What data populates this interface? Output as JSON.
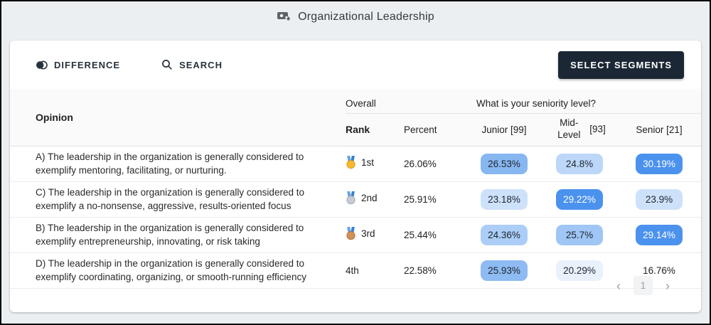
{
  "header": {
    "title": "Organizational Leadership"
  },
  "toolbar": {
    "difference_label": "DIFFERENCE",
    "search_label": "SEARCH",
    "select_segments_label": "SELECT SEGMENTS",
    "button_color": "#1b2734"
  },
  "table": {
    "opinion_header": "Opinion",
    "group_overall": "Overall",
    "group_segments": "What is your seniority level?",
    "col_rank": "Rank",
    "col_percent": "Percent",
    "col_junior": "Junior [99]",
    "col_mid_word": "Mid-Level",
    "col_mid_bracket": "[93]",
    "col_senior": "Senior [21]",
    "accent_blue_strong": "#4b92ee",
    "rows": [
      {
        "opinion": "A) The leadership in the organization is generally considered to exemplify mentoring, facilitating, or nurturing.",
        "medal": "gold",
        "rank": "1st",
        "percent": "26.06%",
        "junior": {
          "value": "26.53%",
          "bg": "#87b7f1",
          "fg": "#1f2530"
        },
        "mid": {
          "value": "24.8%",
          "bg": "#bcd7f8",
          "fg": "#1f2530"
        },
        "senior": {
          "value": "30.19%",
          "bg": "#4b92ee",
          "fg": "#ffffff"
        }
      },
      {
        "opinion": "C) The leadership in the organization is generally considered to exemplify a no-nonsense, aggressive, results-oriented focus",
        "medal": "silver",
        "rank": "2nd",
        "percent": "25.91%",
        "junior": {
          "value": "23.18%",
          "bg": "#cde1fa",
          "fg": "#1f2530"
        },
        "mid": {
          "value": "29.22%",
          "bg": "#4b92ee",
          "fg": "#ffffff"
        },
        "senior": {
          "value": "23.9%",
          "bg": "#cde1fa",
          "fg": "#1f2530"
        }
      },
      {
        "opinion": "B) The leadership in the organization is generally considered to exemplify entrepreneurship, innovating, or risk taking",
        "medal": "bronze",
        "rank": "3rd",
        "percent": "25.44%",
        "junior": {
          "value": "24.36%",
          "bg": "#abcdf6",
          "fg": "#1f2530"
        },
        "mid": {
          "value": "25.7%",
          "bg": "#9fc6f4",
          "fg": "#1f2530"
        },
        "senior": {
          "value": "29.14%",
          "bg": "#4b92ee",
          "fg": "#ffffff"
        }
      },
      {
        "opinion": "D) The leadership in the organization is generally considered to exemplify coordinating, organizing, or smooth-running efficiency",
        "medal": null,
        "rank": "4th",
        "percent": "22.58%",
        "junior": {
          "value": "25.93%",
          "bg": "#8dbbf2",
          "fg": "#1f2530"
        },
        "mid": {
          "value": "20.29%",
          "bg": "#e9f1fd",
          "fg": "#1f2530"
        },
        "senior": {
          "value": "16.76%",
          "bg": null,
          "fg": "#212121"
        }
      }
    ]
  },
  "pagination": {
    "current_page": "1",
    "prev_icon": "‹",
    "next_icon": "›"
  }
}
